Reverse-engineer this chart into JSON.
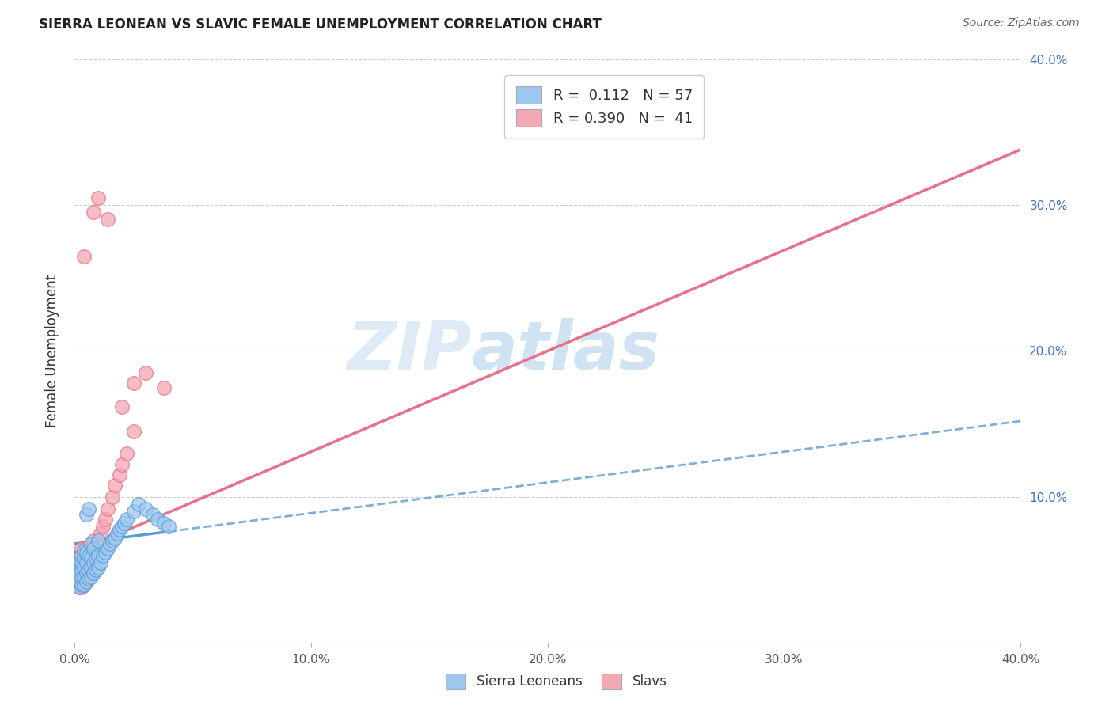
{
  "title": "SIERRA LEONEAN VS SLAVIC FEMALE UNEMPLOYMENT CORRELATION CHART",
  "source": "Source: ZipAtlas.com",
  "ylabel": "Female Unemployment",
  "xlim": [
    0.0,
    0.4
  ],
  "ylim": [
    0.0,
    0.4
  ],
  "xtick_labels": [
    "0.0%",
    "10.0%",
    "20.0%",
    "30.0%",
    "40.0%"
  ],
  "xtick_vals": [
    0.0,
    0.1,
    0.2,
    0.3,
    0.4
  ],
  "ytick_labels_right": [
    "40.0%",
    "30.0%",
    "20.0%",
    "10.0%"
  ],
  "ytick_vals_right": [
    0.4,
    0.3,
    0.2,
    0.1
  ],
  "watermark_zip": "ZIP",
  "watermark_atlas": "atlas",
  "color_sl": "#9ec8f0",
  "color_slav": "#f4a7b5",
  "color_sl_line": "#5b9bd5",
  "color_slav_line": "#e8708a",
  "background": "#ffffff",
  "sierra_x": [
    0.001,
    0.001,
    0.001,
    0.002,
    0.002,
    0.002,
    0.002,
    0.003,
    0.003,
    0.003,
    0.003,
    0.003,
    0.004,
    0.004,
    0.004,
    0.004,
    0.004,
    0.005,
    0.005,
    0.005,
    0.005,
    0.006,
    0.006,
    0.006,
    0.007,
    0.007,
    0.007,
    0.007,
    0.008,
    0.008,
    0.008,
    0.009,
    0.009,
    0.01,
    0.01,
    0.01,
    0.011,
    0.012,
    0.013,
    0.014,
    0.015,
    0.016,
    0.017,
    0.018,
    0.019,
    0.02,
    0.021,
    0.022,
    0.025,
    0.027,
    0.03,
    0.033,
    0.035,
    0.038,
    0.04,
    0.005,
    0.006
  ],
  "sierra_y": [
    0.04,
    0.045,
    0.05,
    0.038,
    0.042,
    0.048,
    0.055,
    0.04,
    0.045,
    0.05,
    0.055,
    0.06,
    0.04,
    0.045,
    0.052,
    0.058,
    0.063,
    0.042,
    0.048,
    0.055,
    0.062,
    0.044,
    0.05,
    0.06,
    0.045,
    0.052,
    0.058,
    0.068,
    0.048,
    0.055,
    0.065,
    0.05,
    0.058,
    0.052,
    0.06,
    0.07,
    0.055,
    0.06,
    0.062,
    0.065,
    0.068,
    0.07,
    0.072,
    0.075,
    0.078,
    0.08,
    0.082,
    0.085,
    0.09,
    0.095,
    0.092,
    0.088,
    0.085,
    0.082,
    0.08,
    0.088,
    0.092
  ],
  "slav_x": [
    0.001,
    0.001,
    0.002,
    0.002,
    0.002,
    0.003,
    0.003,
    0.003,
    0.003,
    0.004,
    0.004,
    0.004,
    0.005,
    0.005,
    0.005,
    0.006,
    0.006,
    0.007,
    0.007,
    0.008,
    0.008,
    0.009,
    0.01,
    0.011,
    0.012,
    0.013,
    0.014,
    0.016,
    0.017,
    0.019,
    0.02,
    0.022,
    0.025,
    0.038,
    0.004,
    0.008,
    0.01,
    0.014,
    0.02,
    0.025,
    0.03
  ],
  "slav_y": [
    0.04,
    0.055,
    0.038,
    0.048,
    0.058,
    0.038,
    0.045,
    0.055,
    0.065,
    0.04,
    0.05,
    0.06,
    0.042,
    0.055,
    0.065,
    0.048,
    0.06,
    0.05,
    0.065,
    0.052,
    0.07,
    0.06,
    0.068,
    0.075,
    0.08,
    0.085,
    0.092,
    0.1,
    0.108,
    0.115,
    0.122,
    0.13,
    0.145,
    0.175,
    0.265,
    0.295,
    0.305,
    0.29,
    0.162,
    0.178,
    0.185
  ],
  "sl_trend_x0": 0.0,
  "sl_trend_y0": 0.068,
  "sl_trend_x1": 0.4,
  "sl_trend_y1": 0.152,
  "slav_trend_x0": 0.0,
  "slav_trend_y0": 0.062,
  "slav_trend_x1": 0.4,
  "slav_trend_y1": 0.338
}
